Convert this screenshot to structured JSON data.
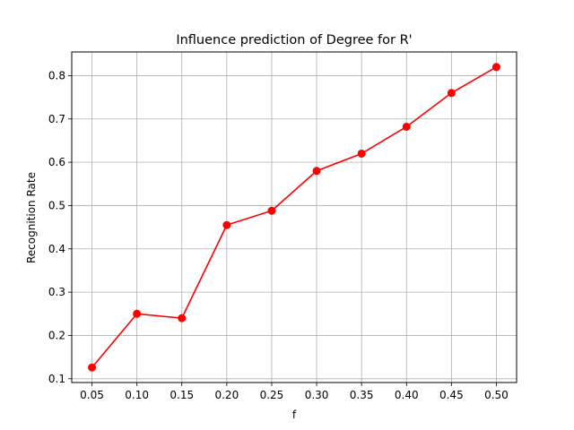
{
  "chart_data": {
    "type": "line",
    "title": "Influence prediction of Degree for R'",
    "xlabel": "f",
    "ylabel": "Recognition Rate",
    "x": [
      0.05,
      0.1,
      0.15,
      0.2,
      0.25,
      0.3,
      0.35,
      0.4,
      0.45,
      0.5
    ],
    "series": [
      {
        "values": [
          0.126,
          0.25,
          0.24,
          0.455,
          0.488,
          0.58,
          0.62,
          0.682,
          0.76,
          0.82
        ],
        "color": "#ff0000",
        "marker": "circle"
      }
    ],
    "xticks": [
      "0.05",
      "0.10",
      "0.15",
      "0.20",
      "0.25",
      "0.30",
      "0.35",
      "0.40",
      "0.45",
      "0.50"
    ],
    "yticks": [
      "0.1",
      "0.2",
      "0.3",
      "0.4",
      "0.5",
      "0.6",
      "0.7",
      "0.8"
    ],
    "xlim": [
      0.0275,
      0.5225
    ],
    "ylim": [
      0.0913,
      0.8547
    ],
    "grid": true,
    "grid_color": "#b0b0b0"
  }
}
